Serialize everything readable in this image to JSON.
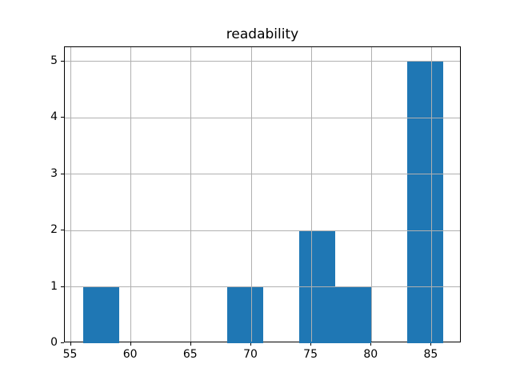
{
  "title": "readability",
  "colors": {
    "bar": "#1f77b4",
    "grid": "#b0b0b0",
    "axis": "#000000",
    "background": "#ffffff",
    "text": "#000000"
  },
  "chart_data": {
    "type": "bar",
    "subtype": "histogram",
    "title": "readability",
    "xlabel": "",
    "ylabel": "",
    "bin_edges": [
      56,
      59,
      62,
      65,
      68,
      71,
      74,
      77,
      80,
      83,
      86
    ],
    "counts": [
      1,
      0,
      0,
      0,
      1,
      0,
      2,
      1,
      0,
      5
    ],
    "xticks": [
      55,
      60,
      65,
      70,
      75,
      80,
      85
    ],
    "yticks": [
      0,
      1,
      2,
      3,
      4,
      5
    ],
    "xlim": [
      54.5,
      87.5
    ],
    "ylim": [
      0,
      5.25
    ],
    "grid": true,
    "grid_above_bars": true,
    "legend": null,
    "bar_color": "#1f77b4",
    "grid_color": "#b0b0b0"
  }
}
